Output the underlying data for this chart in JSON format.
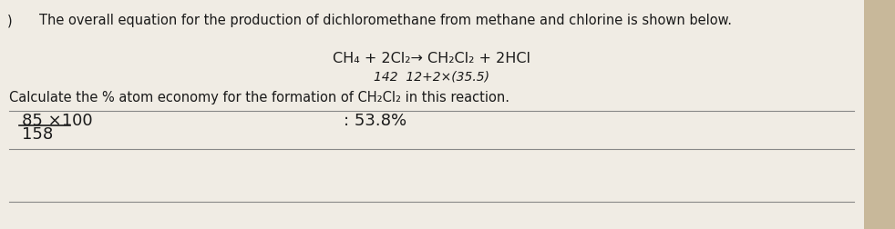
{
  "background_color": "#c8b89a",
  "paper_color": "#f0ece4",
  "top_text": "The overall equation for the production of dichloromethane from methane and chlorine is shown below.",
  "equation_line1": "CH₄ + 2Cl₂→ CH₂Cl₂ + 2HCl",
  "equation_line2": "142  12+2×(35.5)",
  "calc_text": "Calculate the % atom economy for the formation of CH₂Cl₂ in this reaction.",
  "numerator_text": "85 ×100",
  "denominator_text": "158",
  "result_text": ": 53.8%",
  "prefix_char": ")",
  "title_fontsize": 10.5,
  "eq_fontsize": 11.5,
  "annotation_fontsize": 10,
  "calc_fontsize": 10.5,
  "handwriting_fontsize": 13,
  "line_color": "#888888",
  "text_color": "#1a1a1a"
}
